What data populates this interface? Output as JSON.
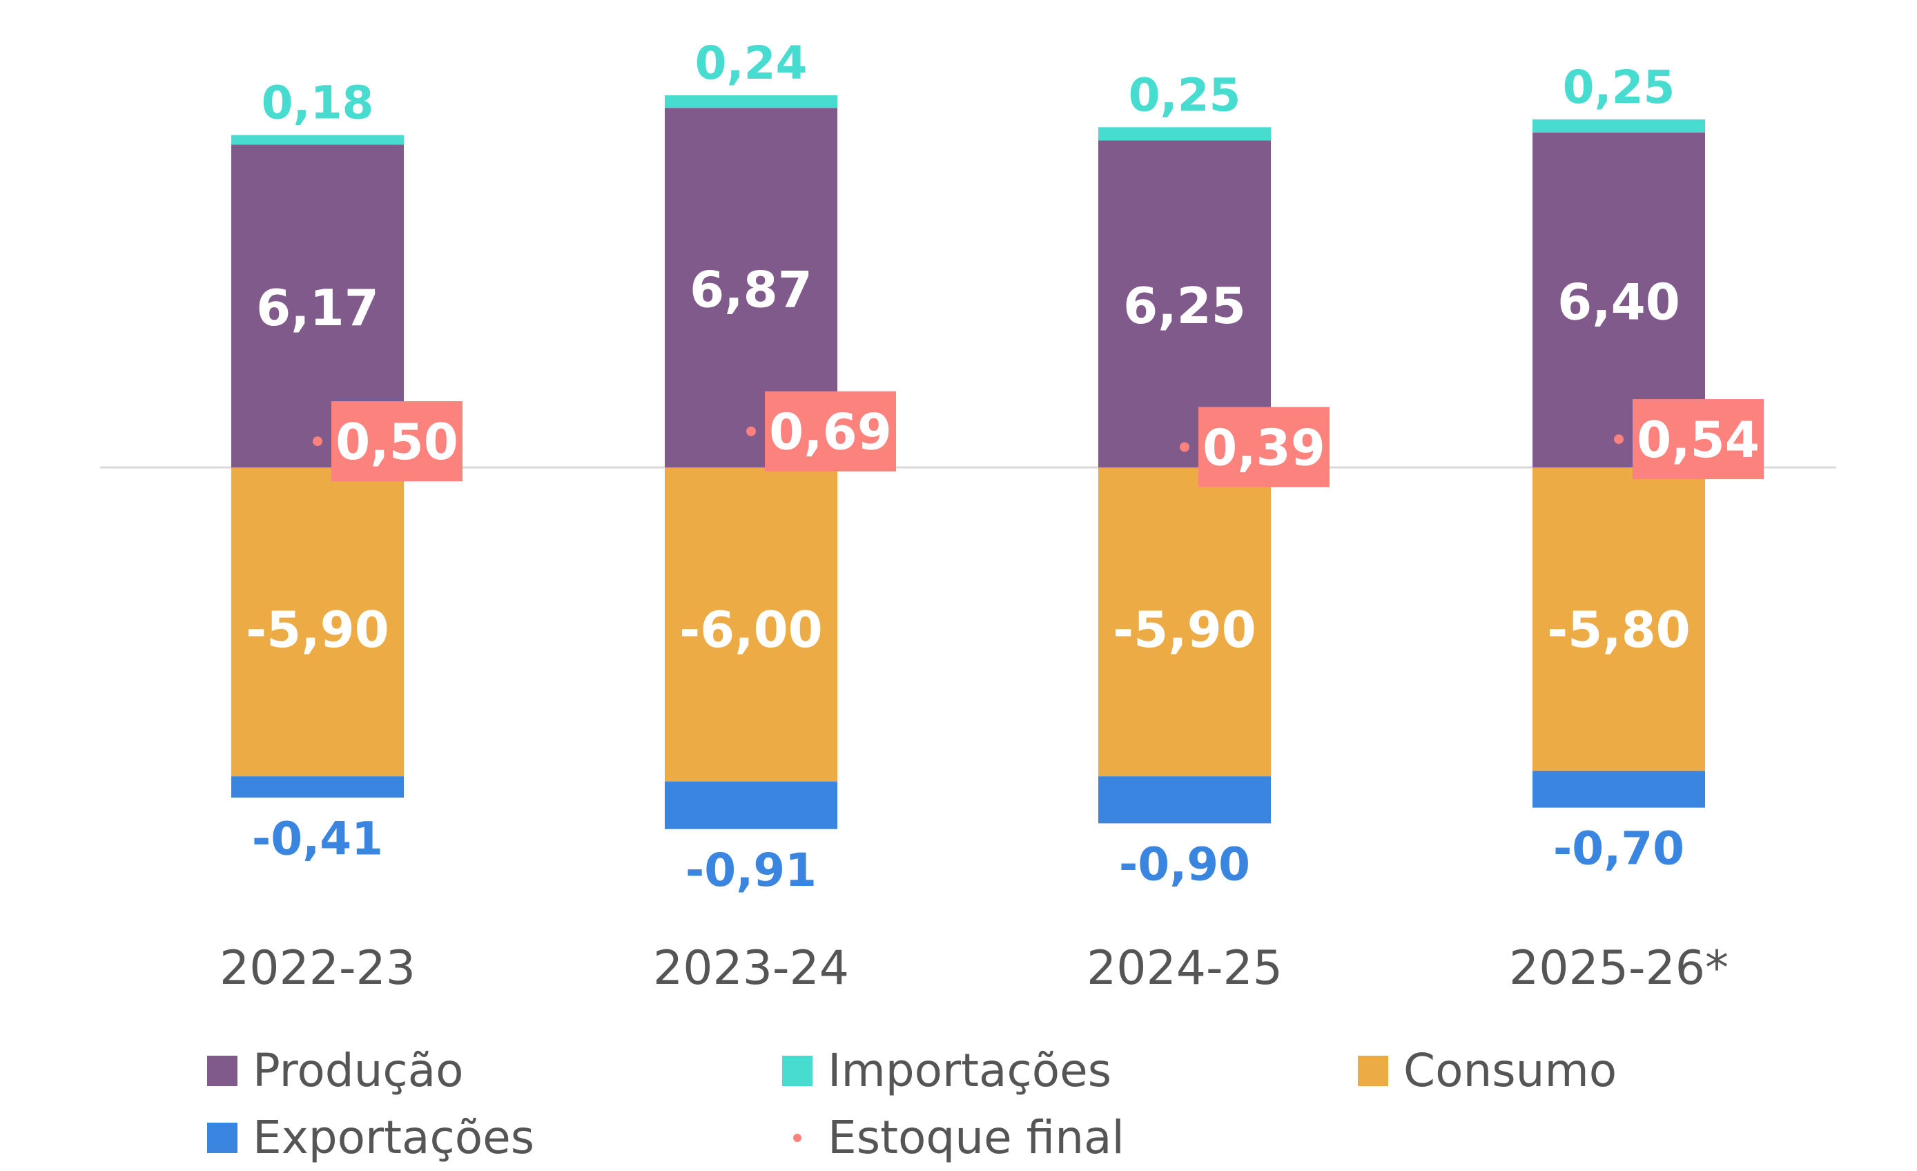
{
  "chart_data": {
    "type": "bar",
    "stacked": true,
    "title": "",
    "xlabel": "",
    "ylabel": "",
    "categories": [
      "2022-23",
      "2023-24",
      "2024-25",
      "2025-26*"
    ],
    "series": [
      {
        "name": "Produção",
        "color": "#7f5a8b",
        "values": [
          6.17,
          6.87,
          6.25,
          6.4
        ],
        "labels": [
          "6,17",
          "6,87",
          "6,25",
          "6,40"
        ]
      },
      {
        "name": "Importações",
        "color": "#48dbcf",
        "values": [
          0.18,
          0.24,
          0.25,
          0.25
        ],
        "labels": [
          "0,18",
          "0,24",
          "0,25",
          "0,25"
        ]
      },
      {
        "name": "Consumo",
        "color": "#edab45",
        "values": [
          -5.9,
          -6.0,
          -5.9,
          -5.8
        ],
        "labels": [
          "-5,90",
          "-6,00",
          "-5,90",
          "-5,80"
        ]
      },
      {
        "name": "Exportações",
        "color": "#3a85e0",
        "values": [
          -0.41,
          -0.91,
          -0.9,
          -0.7
        ],
        "labels": [
          "-0,41",
          "-0,91",
          "-0,90",
          "-0,70"
        ]
      },
      {
        "name": "Estoque final",
        "color": "#fb827d",
        "type": "scatter",
        "values": [
          0.5,
          0.69,
          0.39,
          0.54
        ],
        "labels": [
          "0,50",
          "0,69",
          "0,39",
          "0,54"
        ]
      }
    ],
    "ylim": [
      -7.0,
      7.2
    ],
    "grid": false,
    "zero_line": true,
    "legend": {
      "placement": "bottom",
      "entries": [
        "Produção",
        "Importações",
        "Consumo",
        "Exportações",
        "Estoque final"
      ]
    }
  },
  "colors": {
    "text": "#555555",
    "label_white": "#ffffff",
    "zero_line": "#d9d9d9"
  }
}
